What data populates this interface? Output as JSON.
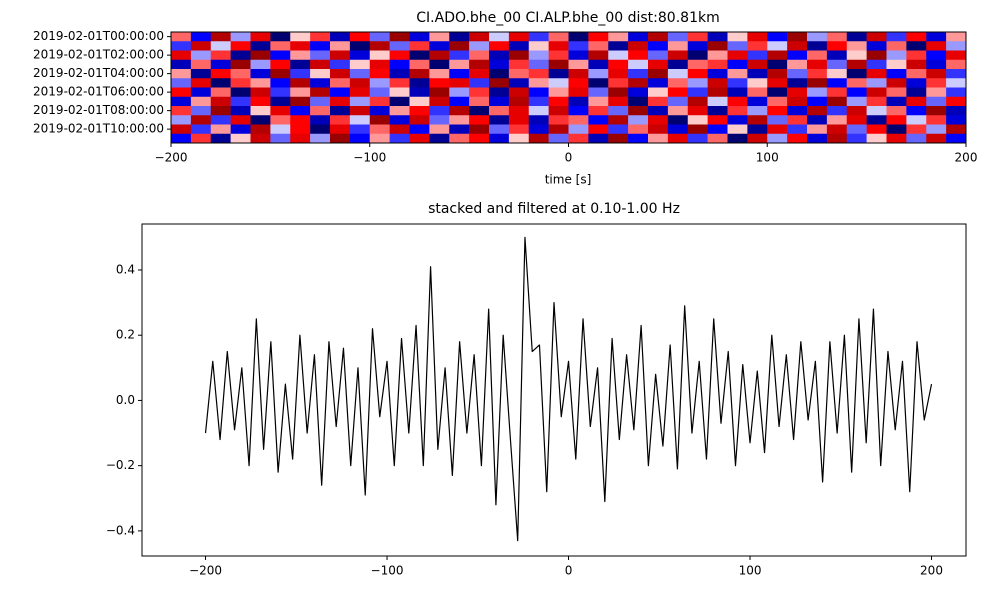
{
  "chart_data": [
    {
      "type": "heatmap",
      "title": "CI.ADO.bhe_00 CI.ALP.bhe_00  dist:80.81km",
      "x_label": "time [s]",
      "colormap": "seismic",
      "clim": [
        -1,
        1
      ],
      "xlim": [
        -200,
        200
      ],
      "xticks": [
        {
          "value": -200,
          "label": "−200"
        },
        {
          "value": -100,
          "label": "−100"
        },
        0,
        100,
        200
      ],
      "categories": [
        "2019-02-01T00:00:00",
        null,
        "2019-02-01T02:00:00",
        null,
        "2019-02-01T04:00:00",
        null,
        "2019-02-01T06:00:00",
        null,
        "2019-02-01T08:00:00",
        null,
        "2019-02-01T10:00:00",
        null
      ],
      "values": [
        [
          0.3,
          -0.5,
          0.8,
          -0.2,
          0.6,
          -0.9,
          0.1,
          0.4,
          -0.7,
          0.5,
          -0.3,
          0.9,
          -0.6,
          0.2,
          -0.8,
          0.7,
          -0.1,
          0.6,
          -0.4,
          0.3,
          -0.9,
          0.5,
          0.2,
          -0.6,
          0.8,
          -0.3,
          0.4,
          -0.7,
          0.1,
          0.6,
          -0.5,
          0.9,
          -0.2,
          0.3,
          -0.8,
          0.7,
          -0.4,
          0.5,
          -0.6,
          0.2
        ],
        [
          -0.4,
          0.7,
          -0.1,
          0.5,
          -0.8,
          0.3,
          0.6,
          -0.5,
          0.2,
          -0.9,
          0.8,
          -0.3,
          0.4,
          -0.6,
          0.9,
          -0.2,
          0.5,
          -0.7,
          0.1,
          0.6,
          -0.4,
          0.3,
          -0.8,
          0.7,
          -0.5,
          0.2,
          -0.6,
          0.9,
          -0.3,
          0.4,
          -0.1,
          0.7,
          -0.8,
          0.5,
          0.2,
          -0.6,
          0.3,
          -0.9,
          0.6,
          -0.2
        ],
        [
          0.6,
          -0.2,
          0.4,
          -0.8,
          0.9,
          -0.5,
          0.2,
          -0.3,
          0.7,
          -0.6,
          0.1,
          0.5,
          -0.9,
          0.8,
          -0.4,
          0.3,
          -0.7,
          0.9,
          -0.2,
          0.4,
          -0.6,
          0.8,
          -0.1,
          0.5,
          -0.3,
          0.7,
          -0.9,
          0.2,
          0.6,
          -0.4,
          0.8,
          -0.5,
          0.3,
          -0.7,
          0.1,
          0.9,
          -0.2,
          0.4,
          -0.5,
          0.6
        ],
        [
          -0.7,
          0.3,
          -0.6,
          0.9,
          -0.2,
          0.5,
          -0.8,
          0.7,
          -0.4,
          0.1,
          0.6,
          -0.5,
          0.3,
          -0.9,
          0.2,
          0.8,
          -0.6,
          0.4,
          -0.3,
          0.9,
          0.2,
          -0.7,
          0.5,
          -0.1,
          0.6,
          -0.8,
          0.3,
          0.4,
          -0.5,
          0.7,
          -0.9,
          0.2,
          0.6,
          -0.3,
          0.8,
          -0.4,
          0.1,
          0.7,
          -0.6,
          0.3
        ],
        [
          0.2,
          -0.8,
          0.5,
          0.3,
          -0.6,
          0.9,
          -0.4,
          0.1,
          0.7,
          -0.3,
          0.5,
          -0.7,
          0.8,
          0.2,
          -0.5,
          0.6,
          -0.9,
          0.3,
          0.4,
          -0.8,
          0.7,
          -0.2,
          0.6,
          -0.4,
          0.9,
          -0.1,
          0.5,
          -0.6,
          0.2,
          -0.7,
          0.8,
          -0.3,
          0.4,
          0.1,
          -0.9,
          0.6,
          -0.5,
          0.3,
          0.7,
          -0.4
        ],
        [
          -0.3,
          0.6,
          -0.9,
          0.4,
          0.2,
          -0.5,
          0.8,
          -0.6,
          0.3,
          0.7,
          -0.2,
          0.4,
          -0.8,
          0.5,
          0.6,
          -0.4,
          0.9,
          -0.7,
          0.2,
          -0.1,
          0.5,
          -0.9,
          0.4,
          0.8,
          -0.6,
          0.3,
          -0.2,
          0.7,
          -0.4,
          0.1,
          0.6,
          -0.8,
          0.9,
          -0.5,
          0.3,
          -0.2,
          0.7,
          -0.6,
          0.4,
          -0.1
        ],
        [
          0.5,
          -0.6,
          0.3,
          -0.9,
          0.7,
          -0.4,
          0.2,
          0.8,
          -0.5,
          0.6,
          -0.3,
          0.1,
          -0.7,
          0.9,
          -0.2,
          0.4,
          -0.8,
          0.7,
          -0.5,
          0.2,
          0.6,
          -0.3,
          0.9,
          -0.6,
          0.1,
          0.5,
          -0.4,
          0.8,
          -0.7,
          0.3,
          -0.9,
          0.6,
          -0.2,
          0.4,
          -0.5,
          0.7,
          0.3,
          -0.8,
          0.2,
          -0.4
        ],
        [
          -0.6,
          0.2,
          0.7,
          -0.4,
          0.5,
          -0.8,
          0.9,
          -0.3,
          0.6,
          -0.2,
          0.4,
          -0.9,
          0.1,
          0.7,
          -0.5,
          0.3,
          -0.6,
          0.8,
          -0.4,
          0.5,
          -0.7,
          0.2,
          0.6,
          -0.9,
          0.4,
          -0.3,
          0.8,
          -0.1,
          0.5,
          -0.6,
          0.3,
          0.7,
          -0.5,
          0.9,
          -0.2,
          0.4,
          -0.7,
          0.6,
          -0.3,
          0.5
        ],
        [
          0.4,
          -0.3,
          0.9,
          -0.7,
          0.1,
          0.6,
          -0.5,
          0.3,
          -0.8,
          0.7,
          -0.6,
          0.2,
          0.5,
          -0.4,
          0.8,
          -0.9,
          0.3,
          0.6,
          -0.1,
          0.7,
          -0.5,
          0.4,
          -0.3,
          0.9,
          -0.7,
          0.2,
          0.6,
          -0.8,
          0.4,
          -0.2,
          0.5,
          -0.6,
          0.8,
          -0.4,
          0.7,
          -0.1,
          0.3,
          -0.5,
          0.9,
          -0.7
        ],
        [
          -0.2,
          0.8,
          -0.4,
          0.6,
          -0.9,
          0.3,
          0.5,
          -0.7,
          0.4,
          -0.1,
          0.9,
          -0.6,
          0.7,
          -0.3,
          0.2,
          0.5,
          -0.8,
          0.6,
          -0.7,
          0.4,
          0.3,
          -0.5,
          0.8,
          -0.2,
          0.6,
          -0.9,
          0.1,
          0.5,
          -0.6,
          0.8,
          -0.3,
          0.4,
          -0.7,
          0.2,
          0.6,
          -0.8,
          0.5,
          -0.1,
          0.4,
          -0.6
        ],
        [
          0.7,
          -0.4,
          0.2,
          -0.6,
          0.8,
          -0.1,
          0.5,
          -0.9,
          0.6,
          -0.4,
          0.3,
          0.7,
          -0.5,
          0.2,
          -0.7,
          0.9,
          -0.3,
          0.4,
          -0.6,
          0.8,
          -0.2,
          0.5,
          -0.4,
          0.3,
          0.7,
          -0.6,
          0.9,
          -0.5,
          0.1,
          -0.8,
          0.6,
          -0.4,
          0.2,
          0.7,
          -0.3,
          0.5,
          -0.9,
          0.4,
          -0.2,
          0.8
        ],
        [
          -0.5,
          0.4,
          -0.8,
          0.1,
          0.7,
          -0.3,
          0.6,
          -0.2,
          0.9,
          -0.5,
          0.2,
          -0.4,
          0.6,
          -0.8,
          0.3,
          0.5,
          -0.6,
          0.1,
          0.8,
          -0.3,
          0.4,
          -0.7,
          0.9,
          -0.5,
          0.2,
          0.6,
          -0.4,
          0.3,
          -0.9,
          0.7,
          -0.2,
          0.5,
          -0.6,
          0.8,
          -0.4,
          0.1,
          0.6,
          -0.3,
          0.7,
          -0.5
        ]
      ]
    },
    {
      "type": "line",
      "title": "stacked and filtered at 0.10-1.00 Hz",
      "color": "#000000",
      "xlim": [
        -235,
        219
      ],
      "ylim": [
        -0.477,
        0.541
      ],
      "xticks": [
        {
          "value": -200,
          "label": "−200"
        },
        {
          "value": -100,
          "label": "−100"
        },
        0,
        100,
        200
      ],
      "yticks": [
        {
          "value": -0.4,
          "label": "−0.4"
        },
        {
          "value": -0.2,
          "label": "−0.2"
        },
        {
          "value": 0,
          "label": "0.0"
        },
        0.2,
        0.4
      ],
      "x": [
        -200,
        -196,
        -192,
        -188,
        -184,
        -180,
        -176,
        -172,
        -168,
        -164,
        -160,
        -156,
        -152,
        -148,
        -144,
        -140,
        -136,
        -132,
        -128,
        -124,
        -120,
        -116,
        -112,
        -108,
        -104,
        -100,
        -96,
        -92,
        -88,
        -84,
        -80,
        -76,
        -72,
        -68,
        -64,
        -60,
        -56,
        -52,
        -48,
        -44,
        -40,
        -36,
        -32,
        -28,
        -24,
        -20,
        -16,
        -12,
        -8,
        -4,
        0,
        4,
        8,
        12,
        16,
        20,
        24,
        28,
        32,
        36,
        40,
        44,
        48,
        52,
        56,
        60,
        64,
        68,
        72,
        76,
        80,
        84,
        88,
        92,
        96,
        100,
        104,
        108,
        112,
        116,
        120,
        124,
        128,
        132,
        136,
        140,
        144,
        148,
        152,
        156,
        160,
        164,
        168,
        172,
        176,
        180,
        184,
        188,
        192,
        196,
        200
      ],
      "values": [
        -0.1,
        0.12,
        -0.12,
        0.15,
        -0.09,
        0.1,
        -0.2,
        0.25,
        -0.15,
        0.18,
        -0.22,
        0.05,
        -0.18,
        0.2,
        -0.1,
        0.14,
        -0.26,
        0.18,
        -0.08,
        0.16,
        -0.2,
        0.1,
        -0.29,
        0.22,
        -0.05,
        0.12,
        -0.2,
        0.19,
        -0.1,
        0.23,
        -0.2,
        0.41,
        -0.15,
        0.1,
        -0.23,
        0.18,
        -0.1,
        0.14,
        -0.2,
        0.28,
        -0.32,
        0.2,
        -0.12,
        -0.43,
        0.5,
        0.15,
        0.17,
        -0.28,
        0.3,
        -0.05,
        0.12,
        -0.18,
        0.25,
        -0.08,
        0.1,
        -0.31,
        0.19,
        -0.12,
        0.14,
        -0.09,
        0.23,
        -0.2,
        0.08,
        -0.14,
        0.17,
        -0.21,
        0.29,
        -0.1,
        0.12,
        -0.18,
        0.25,
        -0.07,
        0.15,
        -0.2,
        0.11,
        -0.13,
        0.09,
        -0.16,
        0.2,
        -0.08,
        0.14,
        -0.12,
        0.18,
        -0.06,
        0.12,
        -0.25,
        0.18,
        -0.1,
        0.2,
        -0.22,
        0.25,
        -0.13,
        0.28,
        -0.2,
        0.15,
        -0.09,
        0.12,
        -0.28,
        0.18,
        -0.06,
        0.05
      ]
    }
  ]
}
